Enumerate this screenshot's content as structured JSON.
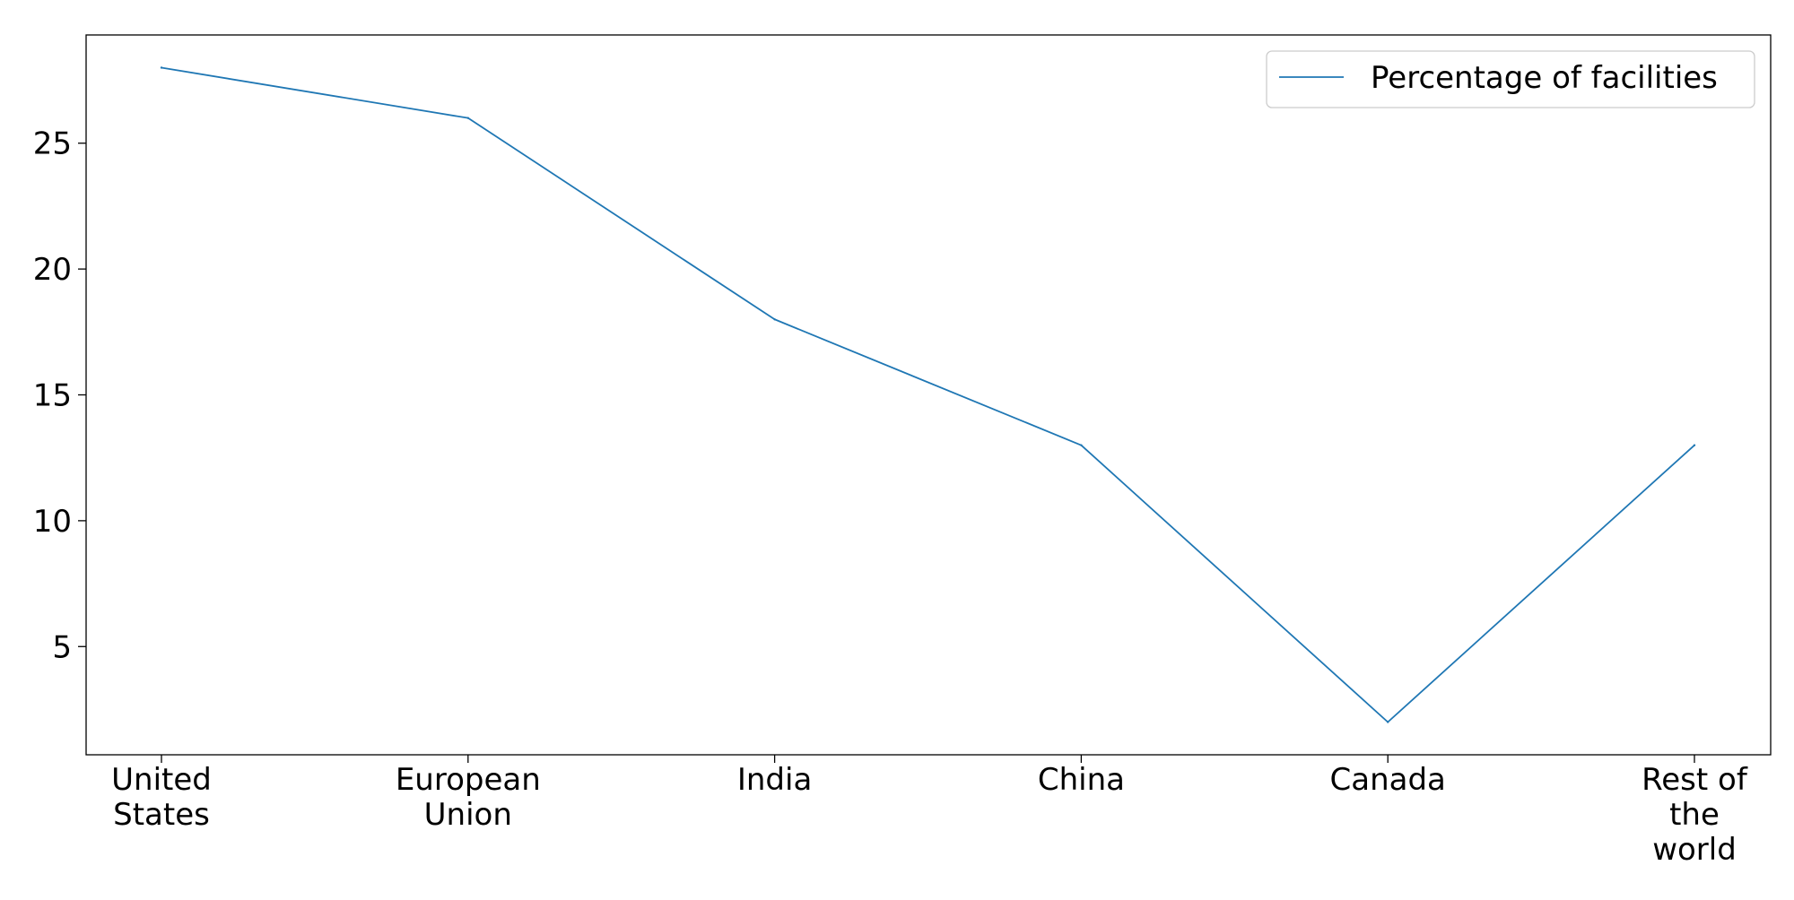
{
  "chart_data": {
    "type": "line",
    "title": "",
    "xlabel": "",
    "ylabel": "",
    "categories": [
      "United States",
      "European Union",
      "India",
      "China",
      "Canada",
      "Rest of the world"
    ],
    "category_lines": [
      [
        "United",
        "States"
      ],
      [
        "European",
        "Union"
      ],
      [
        "India"
      ],
      [
        "China"
      ],
      [
        "Canada"
      ],
      [
        "Rest of",
        "the",
        "world"
      ]
    ],
    "series": [
      {
        "name": "Percentage of facilities",
        "values": [
          28,
          26,
          18,
          13,
          2,
          13
        ],
        "color": "#1f77b4"
      }
    ],
    "ylim": [
      0.7,
      29.3
    ],
    "yticks": [
      5,
      10,
      15,
      20,
      25
    ],
    "grid": false,
    "legend_position": "top-right"
  }
}
